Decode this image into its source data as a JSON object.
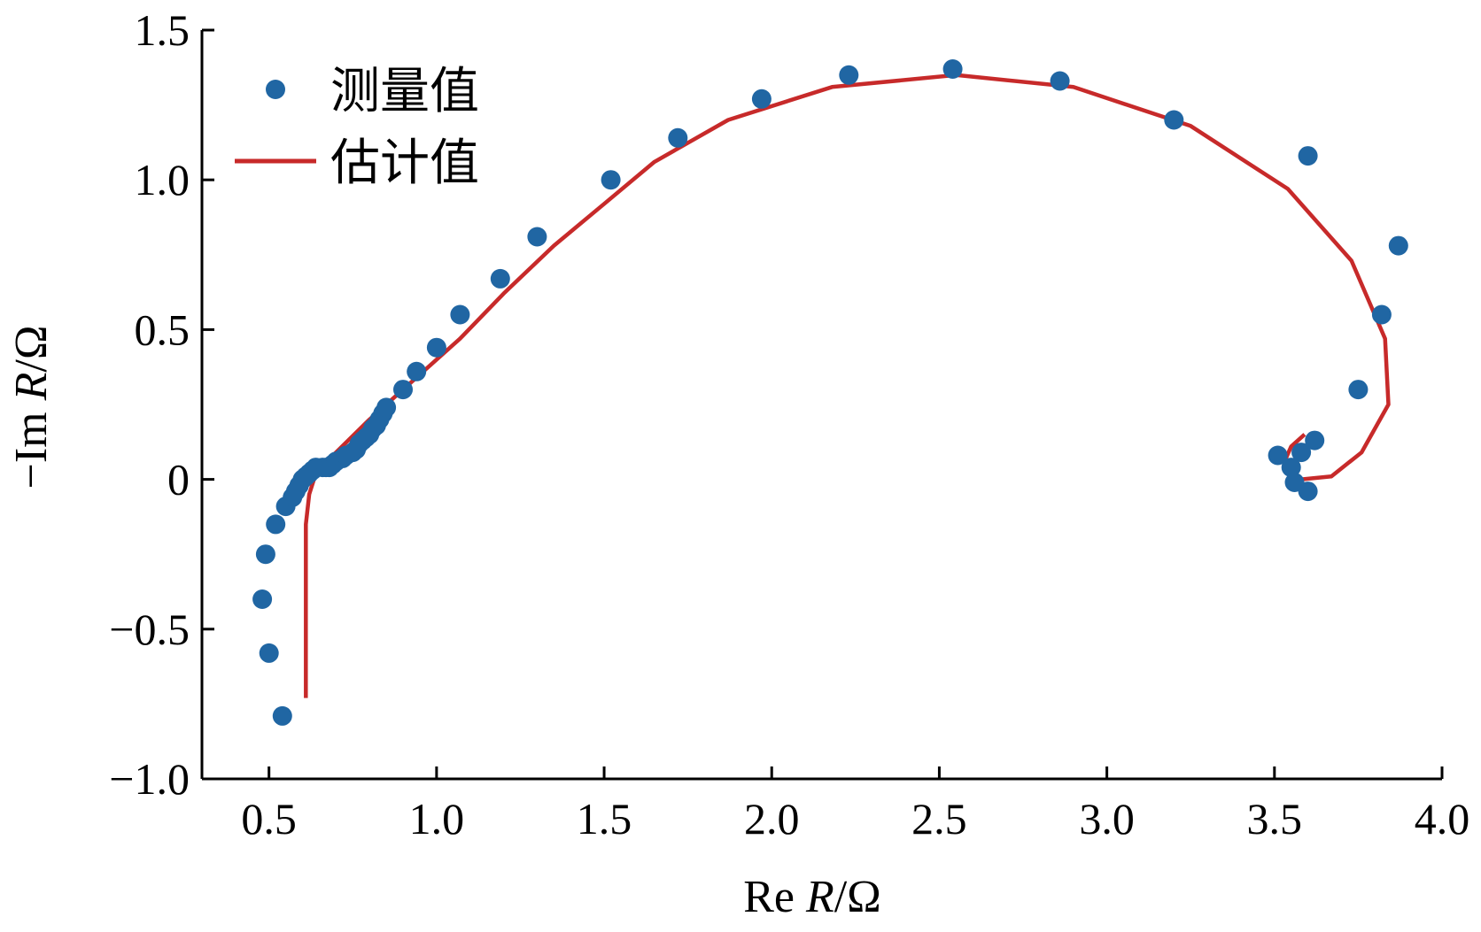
{
  "chart_data": {
    "type": "scatter",
    "xlabel": {
      "prefix": "Re ",
      "var": "R",
      "unit": "/Ω"
    },
    "ylabel": {
      "prefix": "−Im ",
      "var": "R",
      "unit": "/Ω"
    },
    "xlim": [
      0.3,
      4.0
    ],
    "ylim": [
      -1.0,
      1.5
    ],
    "xticks": [
      0.5,
      1.0,
      1.5,
      2.0,
      2.5,
      3.0,
      3.5,
      4.0
    ],
    "xtick_labels": [
      "0.5",
      "1.0",
      "1.5",
      "2.0",
      "2.5",
      "3.0",
      "3.5",
      "4.0"
    ],
    "yticks": [
      1.5,
      1.0,
      0.5,
      0,
      -0.5,
      -1.0
    ],
    "ytick_labels": [
      "1.5",
      "1.0",
      "0.5",
      "0",
      "−0.5",
      "−1.0"
    ],
    "grid": false,
    "legend_position": "top-left",
    "series": [
      {
        "name": "测量值",
        "kind": "scatter",
        "color": "#2066a3",
        "points": [
          [
            0.54,
            -0.79
          ],
          [
            0.5,
            -0.58
          ],
          [
            0.48,
            -0.4
          ],
          [
            0.49,
            -0.25
          ],
          [
            0.52,
            -0.15
          ],
          [
            0.55,
            -0.09
          ],
          [
            0.57,
            -0.06
          ],
          [
            0.58,
            -0.04
          ],
          [
            0.59,
            -0.02
          ],
          [
            0.6,
            0.0
          ],
          [
            0.61,
            0.01
          ],
          [
            0.62,
            0.02
          ],
          [
            0.63,
            0.03
          ],
          [
            0.64,
            0.04
          ],
          [
            0.66,
            0.04
          ],
          [
            0.67,
            0.04
          ],
          [
            0.68,
            0.04
          ],
          [
            0.69,
            0.05
          ],
          [
            0.7,
            0.06
          ],
          [
            0.72,
            0.07
          ],
          [
            0.73,
            0.08
          ],
          [
            0.75,
            0.09
          ],
          [
            0.76,
            0.1
          ],
          [
            0.77,
            0.12
          ],
          [
            0.78,
            0.13
          ],
          [
            0.79,
            0.14
          ],
          [
            0.8,
            0.15
          ],
          [
            0.81,
            0.17
          ],
          [
            0.82,
            0.18
          ],
          [
            0.83,
            0.2
          ],
          [
            0.84,
            0.22
          ],
          [
            0.85,
            0.24
          ],
          [
            0.9,
            0.3
          ],
          [
            0.94,
            0.36
          ],
          [
            1.0,
            0.44
          ],
          [
            1.07,
            0.55
          ],
          [
            1.19,
            0.67
          ],
          [
            1.3,
            0.81
          ],
          [
            1.52,
            1.0
          ],
          [
            1.72,
            1.14
          ],
          [
            1.97,
            1.27
          ],
          [
            2.23,
            1.35
          ],
          [
            2.54,
            1.37
          ],
          [
            2.86,
            1.33
          ],
          [
            3.2,
            1.2
          ],
          [
            3.6,
            1.08
          ],
          [
            3.87,
            0.78
          ],
          [
            3.82,
            0.55
          ],
          [
            3.75,
            0.3
          ],
          [
            3.62,
            0.13
          ],
          [
            3.58,
            0.09
          ],
          [
            3.51,
            0.08
          ],
          [
            3.55,
            0.04
          ],
          [
            3.56,
            -0.01
          ],
          [
            3.6,
            -0.04
          ]
        ]
      },
      {
        "name": "估计值",
        "kind": "line",
        "color": "#c72a2a",
        "points": [
          [
            0.61,
            -0.73
          ],
          [
            0.61,
            -0.5
          ],
          [
            0.61,
            -0.3
          ],
          [
            0.61,
            -0.15
          ],
          [
            0.62,
            -0.05
          ],
          [
            0.64,
            0.02
          ],
          [
            0.7,
            0.09
          ],
          [
            0.8,
            0.2
          ],
          [
            0.93,
            0.33
          ],
          [
            1.07,
            0.47
          ],
          [
            1.2,
            0.62
          ],
          [
            1.35,
            0.78
          ],
          [
            1.5,
            0.92
          ],
          [
            1.65,
            1.06
          ],
          [
            1.87,
            1.2
          ],
          [
            2.18,
            1.31
          ],
          [
            2.55,
            1.35
          ],
          [
            2.9,
            1.31
          ],
          [
            3.25,
            1.18
          ],
          [
            3.54,
            0.97
          ],
          [
            3.73,
            0.73
          ],
          [
            3.83,
            0.47
          ],
          [
            3.84,
            0.25
          ],
          [
            3.76,
            0.09
          ],
          [
            3.67,
            0.01
          ],
          [
            3.58,
            0.0
          ],
          [
            3.54,
            0.02
          ],
          [
            3.53,
            0.06
          ],
          [
            3.55,
            0.11
          ],
          [
            3.59,
            0.15
          ]
        ]
      }
    ]
  }
}
